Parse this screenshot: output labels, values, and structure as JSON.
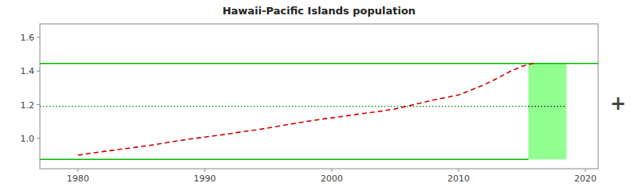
{
  "chart_data": {
    "type": "line",
    "title": "Hawaii-Pacific Islands population",
    "x": [
      1980,
      1981,
      1982,
      1983,
      1984,
      1985,
      1986,
      1987,
      1988,
      1989,
      1990,
      1991,
      1992,
      1993,
      1994,
      1995,
      1996,
      1997,
      1998,
      1999,
      2000,
      2001,
      2002,
      2003,
      2004,
      2005,
      2006,
      2007,
      2008,
      2009,
      2010,
      2011,
      2012,
      2013,
      2014,
      2015,
      2016
    ],
    "values": [
      0.9,
      0.912,
      0.922,
      0.932,
      0.942,
      0.952,
      0.962,
      0.975,
      0.987,
      0.998,
      1.008,
      1.018,
      1.028,
      1.04,
      1.05,
      1.062,
      1.075,
      1.088,
      1.1,
      1.112,
      1.122,
      1.132,
      1.143,
      1.153,
      1.163,
      1.175,
      1.192,
      1.21,
      1.228,
      1.243,
      1.258,
      1.288,
      1.318,
      1.355,
      1.395,
      1.428,
      1.448
    ],
    "color": "#CC0000",
    "line_style": "dashed",
    "xlim": [
      1977,
      2021
    ],
    "xticks": [
      1980,
      1990,
      2000,
      2010,
      2020
    ],
    "ylim": [
      0.82,
      1.68
    ],
    "yticks": [
      {
        "value": 1.0,
        "label": "1.0"
      },
      1.2,
      1.4,
      1.6
    ],
    "lines": [
      {
        "y": 0.875,
        "x": [
          1977,
          2015.5
        ],
        "color": "#00BB00",
        "line_style": "solid"
      },
      {
        "y": 1.445,
        "x": [
          1977,
          2021
        ],
        "color": "#00BB00",
        "line_style": "solid"
      },
      {
        "y": 1.19,
        "x": [
          1977,
          2015.5
        ],
        "color": "#008800",
        "line_style": "dotted"
      },
      {
        "y": 1.19,
        "x": [
          2015.5,
          2018.5
        ],
        "color": "#003300",
        "line_style": "dotted"
      }
    ],
    "band": {
      "x": [
        2015.5,
        2018.5
      ],
      "y": [
        0.875,
        1.445
      ],
      "color": "#90FF90"
    },
    "annotations": [
      "+"
    ],
    "grid": false
  }
}
